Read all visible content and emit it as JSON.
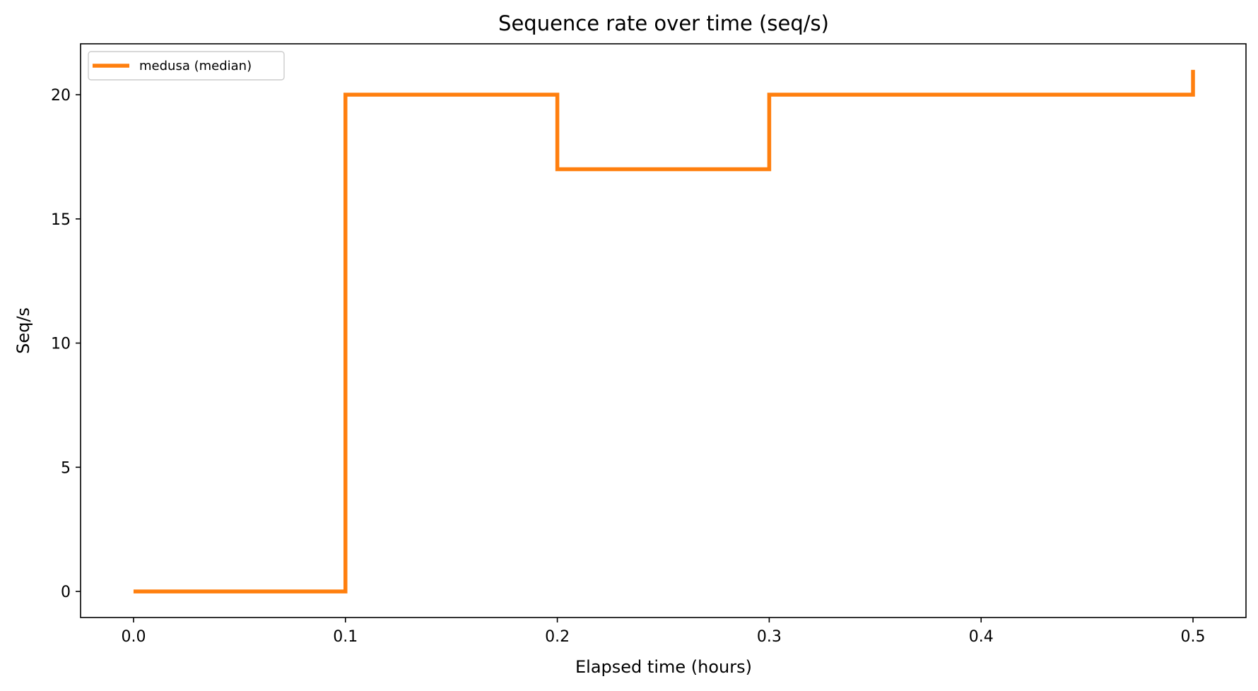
{
  "chart_data": {
    "type": "line",
    "drawstyle": "steps-post",
    "title": "Sequence rate over time (seq/s)",
    "xlabel": "Elapsed time (hours)",
    "ylabel": "Seq/s",
    "xlim": [
      -0.025,
      0.525
    ],
    "ylim": [
      -1.05,
      22.05
    ],
    "xticks": [
      0.0,
      0.1,
      0.2,
      0.3,
      0.4,
      0.5
    ],
    "xtick_labels": [
      "0.0",
      "0.1",
      "0.2",
      "0.3",
      "0.4",
      "0.5"
    ],
    "yticks": [
      0,
      5,
      10,
      15,
      20
    ],
    "ytick_labels": [
      "0",
      "5",
      "10",
      "15",
      "20"
    ],
    "grid": false,
    "legend": {
      "placement": "top-left",
      "entries": [
        "medusa (median)"
      ]
    },
    "series": [
      {
        "name": "medusa (median)",
        "color": "#ff7f0e",
        "x": [
          0.0,
          0.1,
          0.2,
          0.3,
          0.5
        ],
        "y": [
          0,
          20,
          17,
          20,
          21
        ]
      }
    ]
  }
}
